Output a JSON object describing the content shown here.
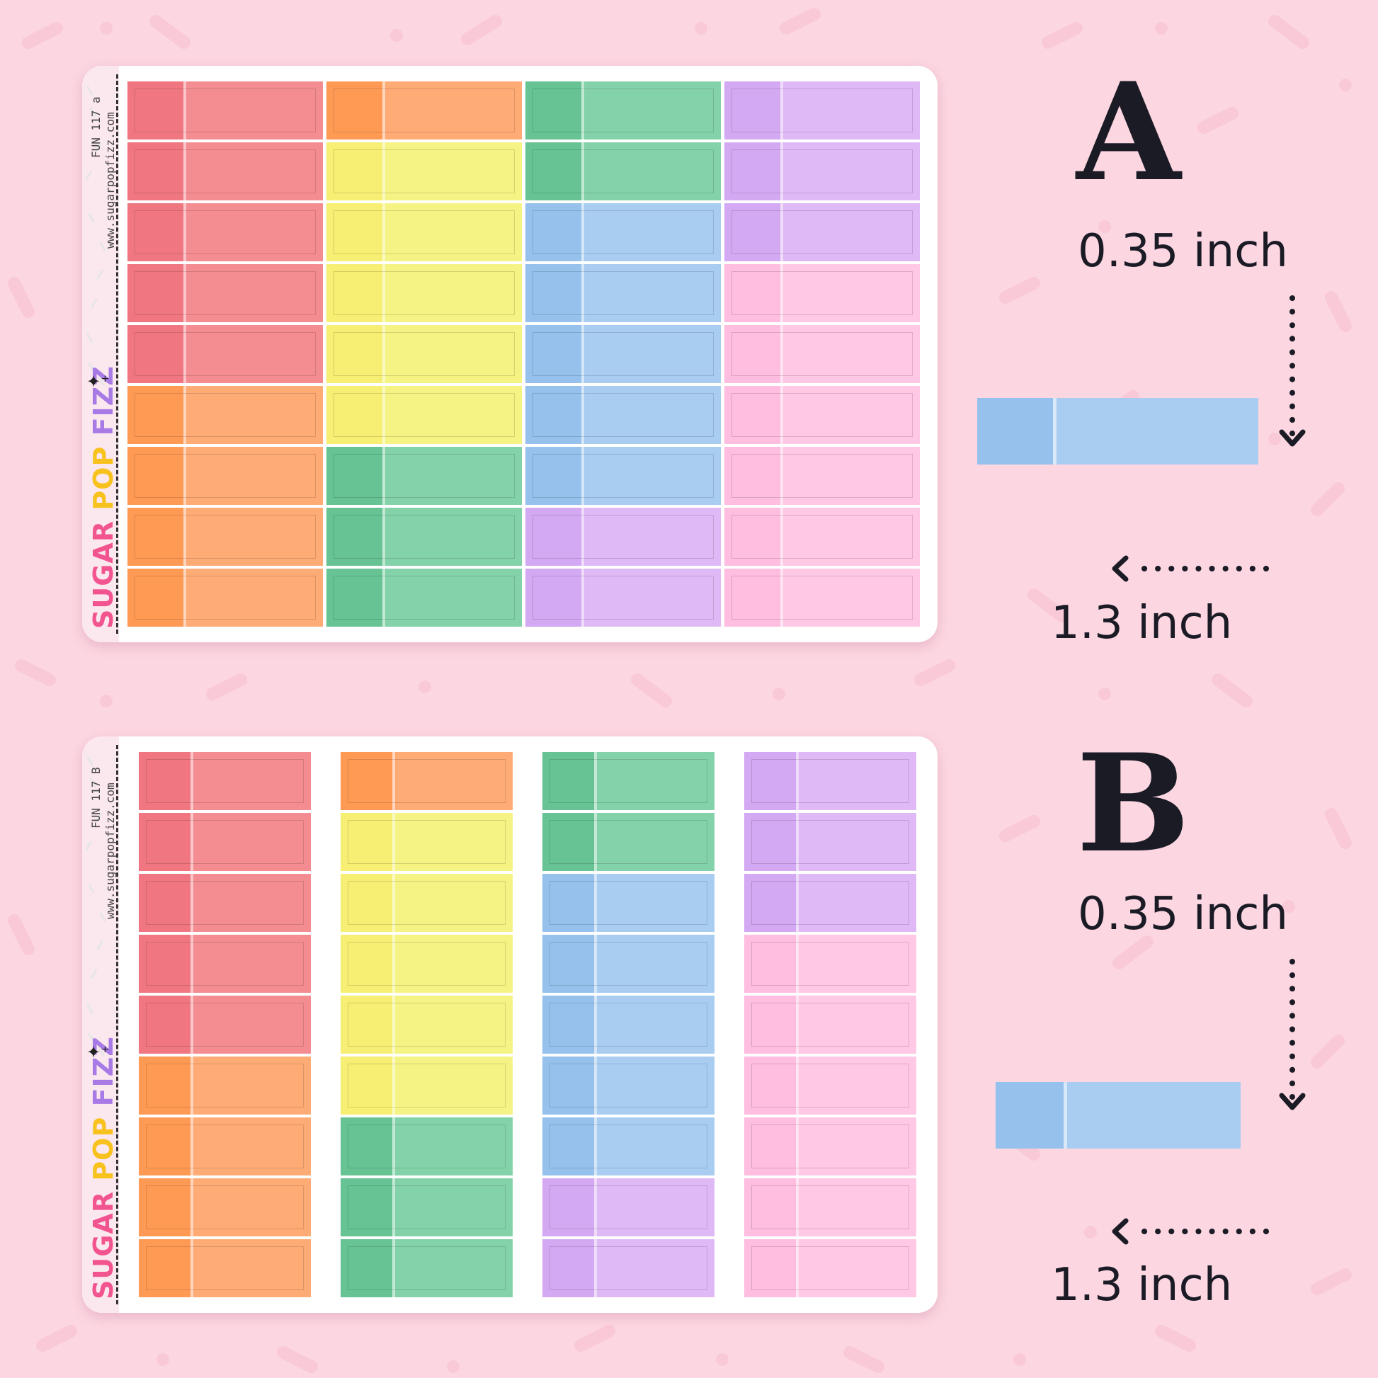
{
  "colors": {
    "red": {
      "tab": "#f07781",
      "body": "#f48d92"
    },
    "orange": {
      "tab": "#ff9a55",
      "body": "#ffab76"
    },
    "yellow": {
      "tab": "#f6ef73",
      "body": "#f6f385"
    },
    "green": {
      "tab": "#67c394",
      "body": "#84d2a9"
    },
    "blue": {
      "tab": "#95c1ec",
      "body": "#a8cdf1"
    },
    "purple": {
      "tab": "#d4a9f4",
      "body": "#dfb9f5"
    },
    "pink": {
      "tab": "#ffbde0",
      "body": "#ffc8e4"
    }
  },
  "sheet_a": {
    "code": "FUN 117 a",
    "website": "www.sugarpopfizz.com",
    "brand": {
      "word1": "SUGAR",
      "word2": "POP",
      "word3": "FIZZ"
    },
    "sparkle": "✦⁺",
    "columns": [
      [
        "red",
        "red",
        "red",
        "red",
        "red",
        "orange",
        "orange",
        "orange",
        "orange"
      ],
      [
        "orange",
        "yellow",
        "yellow",
        "yellow",
        "yellow",
        "yellow",
        "green",
        "green",
        "green"
      ],
      [
        "green",
        "green",
        "blue",
        "blue",
        "blue",
        "blue",
        "blue",
        "purple",
        "purple"
      ],
      [
        "purple",
        "purple",
        "purple",
        "pink",
        "pink",
        "pink",
        "pink",
        "pink",
        "pink"
      ]
    ]
  },
  "sheet_b": {
    "code": "FUN 117 B",
    "website": "www.sugarpopfizz.com",
    "brand": {
      "word1": "SUGAR",
      "word2": "POP",
      "word3": "FIZZ"
    },
    "sparkle": "✦⁺",
    "columns": [
      [
        "red",
        "red",
        "red",
        "red",
        "red",
        "orange",
        "orange",
        "orange",
        "orange"
      ],
      [
        "orange",
        "yellow",
        "yellow",
        "yellow",
        "yellow",
        "yellow",
        "green",
        "green",
        "green"
      ],
      [
        "green",
        "green",
        "blue",
        "blue",
        "blue",
        "blue",
        "blue",
        "purple",
        "purple"
      ],
      [
        "purple",
        "purple",
        "purple",
        "pink",
        "pink",
        "pink",
        "pink",
        "pink",
        "pink"
      ]
    ]
  },
  "size_a": {
    "letter": "A",
    "height": "0.35 inch",
    "width": "1.3 inch",
    "sample_color": "blue"
  },
  "size_b": {
    "letter": "B",
    "height": "0.35 inch",
    "width": "1.3 inch",
    "sample_color": "blue"
  }
}
